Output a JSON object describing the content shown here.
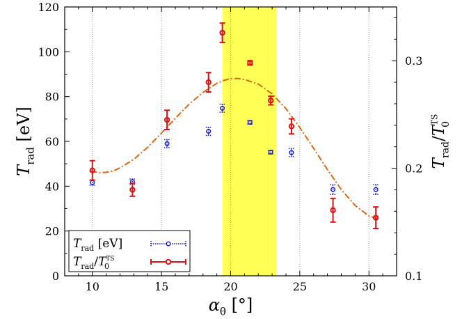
{
  "chart_data": {
    "type": "scatter",
    "xlabel": {
      "main": "α",
      "sub": "θ",
      "unit": "[°]"
    },
    "ylabel": {
      "main": "T",
      "sub": "rad",
      "unit": "[eV]"
    },
    "y2label": {
      "main": "T",
      "sub": "rad",
      "sep": "/T",
      "sub2": "0",
      "sup2": "TS"
    },
    "xlim": [
      8,
      32
    ],
    "ylim": [
      0,
      120
    ],
    "y2lim": [
      0.1,
      0.35
    ],
    "xticks": [
      10,
      15,
      20,
      25,
      30
    ],
    "yticks": [
      0,
      20,
      40,
      60,
      80,
      100,
      120
    ],
    "y2ticks": [
      0.1,
      0.2,
      0.3
    ],
    "y2tick_labels": [
      "0.1",
      "0.2",
      "0.3"
    ],
    "grid_x": true,
    "highlight_band": {
      "x_from": 19.4,
      "x_to": 23.3,
      "color": "#ffff55"
    },
    "legend_position": "bottom-left",
    "series": [
      {
        "name": "T_rad [eV]",
        "legend_label": {
          "main": "T",
          "sub": "rad",
          "unit": "[eV]"
        },
        "axis": "left",
        "color": "#1a1adb",
        "style": "dotted-errorbar-circle",
        "points": [
          {
            "x": 10.0,
            "y": 41.6,
            "err": 1.2
          },
          {
            "x": 12.9,
            "y": 42.0,
            "err": 1.2
          },
          {
            "x": 15.4,
            "y": 59.0,
            "err": 1.8
          },
          {
            "x": 18.4,
            "y": 64.5,
            "err": 1.8
          },
          {
            "x": 19.4,
            "y": 74.8,
            "err": 1.8
          },
          {
            "x": 21.4,
            "y": 68.5,
            "err": 0.8
          },
          {
            "x": 22.9,
            "y": 55.2,
            "err": 0.8
          },
          {
            "x": 24.4,
            "y": 55.0,
            "err": 1.8
          },
          {
            "x": 27.4,
            "y": 38.5,
            "err": 2.2
          },
          {
            "x": 30.5,
            "y": 38.5,
            "err": 2.2
          }
        ]
      },
      {
        "name": "T_rad / T_0^TS",
        "legend_label": {
          "main": "T",
          "sub": "rad",
          "sep": "/T",
          "sub2": "0",
          "sup2": "TS"
        },
        "axis": "right",
        "color": "#dd1111",
        "style": "solid-errorbar-circle",
        "points": [
          {
            "x": 10.0,
            "y": 0.198,
            "err": 0.009
          },
          {
            "x": 12.9,
            "y": 0.18,
            "err": 0.006
          },
          {
            "x": 15.4,
            "y": 0.245,
            "err": 0.009
          },
          {
            "x": 18.4,
            "y": 0.28,
            "err": 0.009
          },
          {
            "x": 19.4,
            "y": 0.326,
            "err": 0.009
          },
          {
            "x": 21.4,
            "y": 0.298,
            "err": 0.002
          },
          {
            "x": 22.9,
            "y": 0.263,
            "err": 0.004
          },
          {
            "x": 24.4,
            "y": 0.239,
            "err": 0.007
          },
          {
            "x": 27.4,
            "y": 0.161,
            "err": 0.011
          },
          {
            "x": 30.5,
            "y": 0.154,
            "err": 0.01
          }
        ]
      }
    ],
    "fit_curve": {
      "name": "fit",
      "axis": "left",
      "color": "#dd6611",
      "style": "dash-dot",
      "x": [
        9.9,
        10.5,
        11.0,
        11.5,
        12.0,
        13.0,
        14.0,
        15.0,
        16.0,
        17.0,
        18.0,
        19.0,
        19.5,
        20.0,
        20.5,
        21.0,
        22.0,
        23.0,
        24.0,
        25.0,
        26.0,
        27.0,
        28.0,
        29.0,
        30.0,
        30.6
      ],
      "y": [
        46.8,
        46.0,
        46.2,
        46.8,
        48.2,
        52.0,
        57.4,
        63.7,
        70.3,
        76.6,
        81.9,
        85.9,
        87.2,
        88.0,
        88.1,
        87.6,
        85.6,
        81.2,
        74.6,
        66.2,
        56.9,
        47.4,
        38.5,
        31.4,
        26.7,
        25.6
      ]
    }
  }
}
